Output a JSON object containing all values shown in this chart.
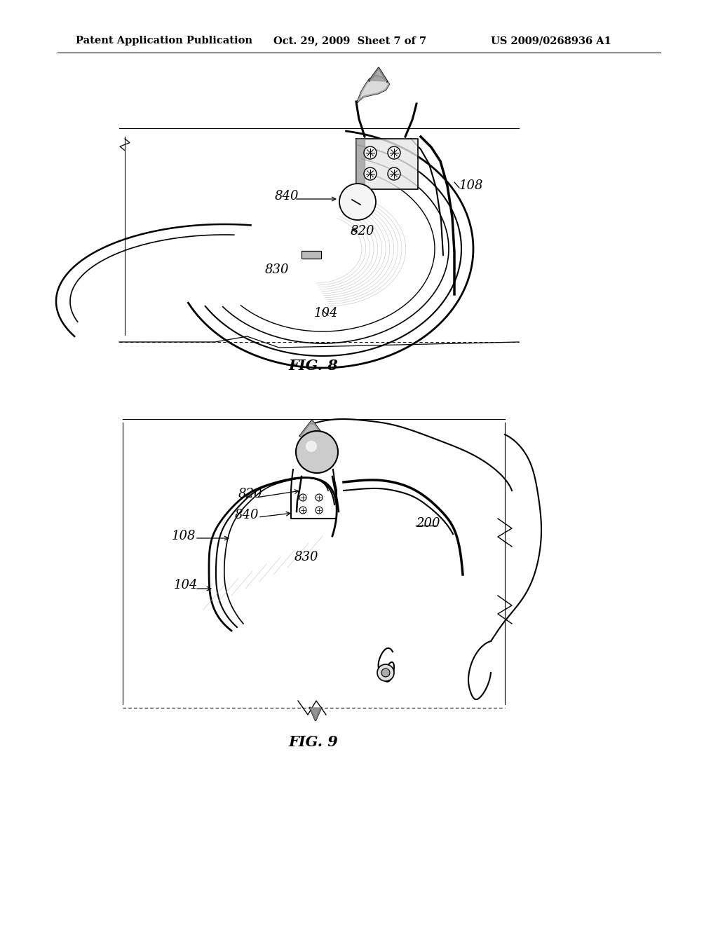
{
  "bg_color": "#ffffff",
  "header_left": "Patent Application Publication",
  "header_mid": "Oct. 29, 2009  Sheet 7 of 7",
  "header_right": "US 2009/0268936 A1",
  "fig8_label": "FIG. 8",
  "fig9_label": "FIG. 9",
  "text_color": "#000000",
  "line_color": "#000000",
  "gray_light": "#d8d8d8",
  "gray_med": "#aaaaaa",
  "gray_dark": "#777777"
}
